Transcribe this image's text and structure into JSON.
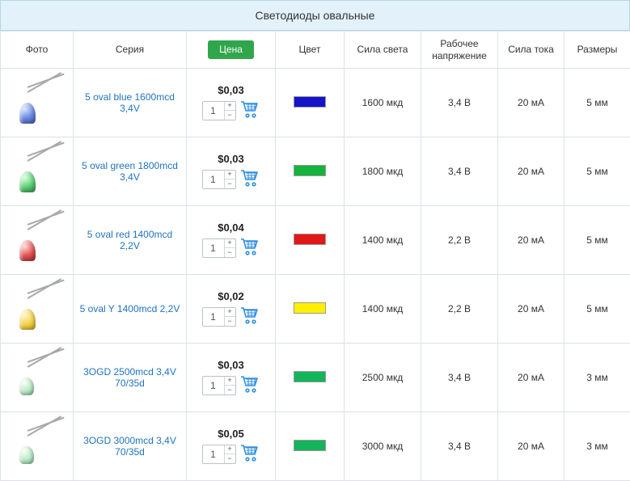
{
  "title": "Светодиоды овальные",
  "columns": {
    "photo": "Фото",
    "series": "Серия",
    "price": "Цена",
    "color": "Цвет",
    "luminosity": "Сила света",
    "voltage": "Рабочее напряжение",
    "current": "Сила тока",
    "size": "Размеры"
  },
  "col_widths": {
    "photo": 90,
    "series": 140,
    "price": 110,
    "color": 85,
    "luminosity": 95,
    "voltage": 95,
    "current": 82,
    "size": 82
  },
  "rows": [
    {
      "series": "5 oval blue 1600mcd 3,4V",
      "price": "$0,03",
      "qty": "1",
      "color_hex": "#1414c8",
      "bulb_css": "radial-gradient(circle at 35% 30%, #d6e2ff 0%, #6c8ae0 50%, #3a4fa8 100%)",
      "luminosity": "1600 мкд",
      "voltage": "3,4 В",
      "current": "20 мА",
      "size": "5 мм",
      "bulb_clear": false
    },
    {
      "series": "5 oval green 1800mcd 3,4V",
      "price": "$0,03",
      "qty": "1",
      "color_hex": "#14b43c",
      "bulb_css": "radial-gradient(circle at 35% 30%, #d9ffda 0%, #5fcf78 50%, #2a8f42 100%)",
      "luminosity": "1800 мкд",
      "voltage": "3,4 В",
      "current": "20 мА",
      "size": "5 мм",
      "bulb_clear": false
    },
    {
      "series": "5 oval red 1400mcd 2,2V",
      "price": "$0,04",
      "qty": "1",
      "color_hex": "#e01818",
      "bulb_css": "radial-gradient(circle at 35% 30%, #ffd4d4 0%, #e25555 50%, #a01f1f 100%)",
      "luminosity": "1400 мкд",
      "voltage": "2,2 В",
      "current": "20 мА",
      "size": "5 мм",
      "bulb_clear": false
    },
    {
      "series": "5 oval Y 1400mcd 2,2V",
      "price": "$0,02",
      "qty": "1",
      "color_hex": "#fff000",
      "bulb_css": "radial-gradient(circle at 35% 30%, #fff7c8 0%, #f2d24a 50%, #c89f14 100%)",
      "luminosity": "1400 мкд",
      "voltage": "2,2 В",
      "current": "20 мА",
      "size": "5 мм",
      "bulb_clear": false
    },
    {
      "series": "3OGD 2500mcd 3,4V 70/35d",
      "price": "$0,03",
      "qty": "1",
      "color_hex": "#14b45c",
      "bulb_css": "radial-gradient(circle at 35% 30%, #f4fff6 0%, #b8e8c4 55%, #7abf92 100%)",
      "luminosity": "2500 мкд",
      "voltage": "3,4 В",
      "current": "20 мА",
      "size": "3 мм",
      "bulb_clear": true
    },
    {
      "series": "3OGD 3000mcd 3,4V 70/35d",
      "price": "$0,05",
      "qty": "1",
      "color_hex": "#14b45c",
      "bulb_css": "radial-gradient(circle at 35% 30%, #f4fff6 0%, #b8e8c4 55%, #7abf92 100%)",
      "luminosity": "3000 мкд",
      "voltage": "3,4 В",
      "current": "20 мА",
      "size": "3 мм",
      "bulb_clear": true
    }
  ],
  "style": {
    "title_bg": "#e3f2fa",
    "title_border": "#b7d6e8",
    "cell_border": "#dbe2e8",
    "price_hdr_bg": "#2fa64b",
    "link_color": "#1e73be",
    "cart_color": "#2f8fe0"
  }
}
